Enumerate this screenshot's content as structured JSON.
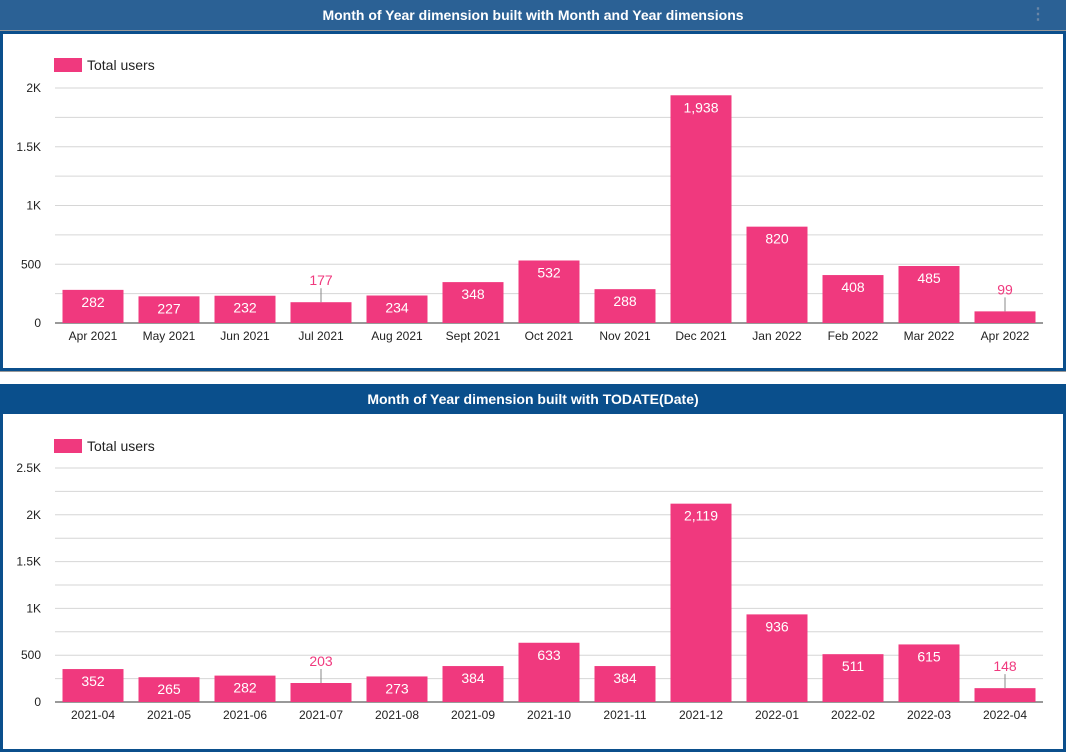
{
  "colors": {
    "bar": "#f0397e",
    "header1": "#2b6195",
    "header2": "#0a4f8c",
    "grid": "#d6d6d6"
  },
  "chart_data": [
    {
      "type": "bar",
      "title": "Month of Year dimension built with Month and Year dimensions",
      "legend": "Total users",
      "legend_position": "top-left",
      "grid": true,
      "categories": [
        "Apr 2021",
        "May 2021",
        "Jun 2021",
        "Jul 2021",
        "Aug 2021",
        "Sept 2021",
        "Oct 2021",
        "Nov 2021",
        "Dec 2021",
        "Jan 2022",
        "Feb 2022",
        "Mar 2022",
        "Apr 2022"
      ],
      "values": [
        282,
        227,
        232,
        177,
        234,
        348,
        532,
        288,
        1938,
        820,
        408,
        485,
        99
      ],
      "value_labels": [
        "282",
        "227",
        "232",
        "177",
        "234",
        "348",
        "532",
        "288",
        "1,938",
        "820",
        "408",
        "485",
        "99"
      ],
      "ylim": [
        0,
        2000
      ],
      "yticks": [
        0,
        500,
        1000,
        1500,
        2000
      ],
      "ytick_labels": [
        "0",
        "500",
        "1K",
        "1.5K",
        "2K"
      ]
    },
    {
      "type": "bar",
      "title": "Month of Year dimension built with TODATE(Date)",
      "legend": "Total users",
      "legend_position": "top-left",
      "grid": true,
      "categories": [
        "2021-04",
        "2021-05",
        "2021-06",
        "2021-07",
        "2021-08",
        "2021-09",
        "2021-10",
        "2021-11",
        "2021-12",
        "2022-01",
        "2022-02",
        "2022-03",
        "2022-04"
      ],
      "values": [
        352,
        265,
        282,
        203,
        273,
        384,
        633,
        384,
        2119,
        936,
        511,
        615,
        148
      ],
      "value_labels": [
        "352",
        "265",
        "282",
        "203",
        "273",
        "384",
        "633",
        "384",
        "2,119",
        "936",
        "511",
        "615",
        "148"
      ],
      "ylim": [
        0,
        2500
      ],
      "yticks": [
        0,
        500,
        1000,
        1500,
        2000,
        2500
      ],
      "ytick_labels": [
        "0",
        "500",
        "1K",
        "1.5K",
        "2K",
        "2.5K"
      ]
    }
  ],
  "menu_icon": "more-vertical-icon"
}
